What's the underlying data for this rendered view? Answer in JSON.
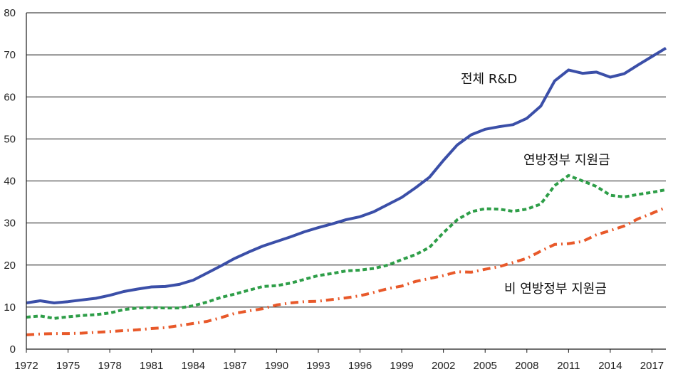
{
  "chart_data": {
    "type": "line",
    "title": "",
    "xlabel": "",
    "ylabel": "",
    "xlim": [
      1972,
      2018
    ],
    "ylim": [
      0,
      80
    ],
    "yticks": [
      0,
      10,
      20,
      30,
      40,
      50,
      60,
      70,
      80
    ],
    "xticks": [
      1972,
      1975,
      1978,
      1981,
      1984,
      1987,
      1990,
      1993,
      1996,
      1999,
      2002,
      2005,
      2008,
      2011,
      2014,
      2017
    ],
    "grid": "horizontal",
    "x": [
      1972,
      1973,
      1974,
      1975,
      1976,
      1977,
      1978,
      1979,
      1980,
      1981,
      1982,
      1983,
      1984,
      1985,
      1986,
      1987,
      1988,
      1989,
      1990,
      1991,
      1992,
      1993,
      1994,
      1995,
      1996,
      1997,
      1998,
      1999,
      2000,
      2001,
      2002,
      2003,
      2004,
      2005,
      2006,
      2007,
      2008,
      2009,
      2010,
      2011,
      2012,
      2013,
      2014,
      2015,
      2016,
      2017,
      2018
    ],
    "series": [
      {
        "name": "전체 R&D",
        "color": "#3b4fa8",
        "style": "solid",
        "values": [
          11.0,
          11.5,
          11.0,
          11.3,
          11.7,
          12.1,
          12.8,
          13.7,
          14.3,
          14.8,
          14.9,
          15.4,
          16.4,
          18.1,
          19.8,
          21.6,
          23.1,
          24.5,
          25.6,
          26.7,
          27.9,
          28.9,
          29.8,
          30.8,
          31.5,
          32.7,
          34.4,
          36.1,
          38.4,
          40.9,
          44.9,
          48.6,
          51.0,
          52.3,
          52.9,
          53.4,
          54.9,
          57.8,
          63.8,
          66.4,
          65.6,
          65.9,
          64.7,
          65.5,
          67.6,
          69.6,
          71.6
        ]
      },
      {
        "name": "연방정부 지원금",
        "color": "#2e9e48",
        "style": "dashed",
        "values": [
          7.6,
          7.9,
          7.3,
          7.7,
          8.0,
          8.2,
          8.6,
          9.4,
          9.8,
          9.9,
          9.8,
          9.8,
          10.3,
          11.2,
          12.3,
          13.1,
          14.0,
          14.9,
          15.1,
          15.7,
          16.6,
          17.5,
          18.0,
          18.6,
          18.8,
          19.2,
          20.0,
          21.3,
          22.5,
          24.2,
          27.7,
          30.8,
          32.7,
          33.4,
          33.3,
          32.8,
          33.3,
          34.5,
          38.9,
          41.3,
          40.0,
          38.7,
          36.6,
          36.2,
          36.8,
          37.3,
          37.9
        ]
      },
      {
        "name": "비 연방정부 지원금",
        "color": "#e8592a",
        "style": "dash-dot",
        "values": [
          3.4,
          3.6,
          3.7,
          3.7,
          3.8,
          4.0,
          4.2,
          4.4,
          4.6,
          4.9,
          5.1,
          5.6,
          6.1,
          6.6,
          7.5,
          8.5,
          9.1,
          9.6,
          10.5,
          11.0,
          11.3,
          11.4,
          11.8,
          12.2,
          12.7,
          13.5,
          14.4,
          15.0,
          16.1,
          16.8,
          17.5,
          18.4,
          18.3,
          19.0,
          19.6,
          20.6,
          21.6,
          23.3,
          24.9,
          25.1,
          25.6,
          27.2,
          28.2,
          29.3,
          31.0,
          32.3,
          33.7
        ]
      }
    ],
    "labels": [
      {
        "text": "전체 R&D",
        "series": 0
      },
      {
        "text": "연방정부 지원금",
        "series": 1
      },
      {
        "text": "비 연방정부 지원금",
        "series": 2
      }
    ]
  }
}
